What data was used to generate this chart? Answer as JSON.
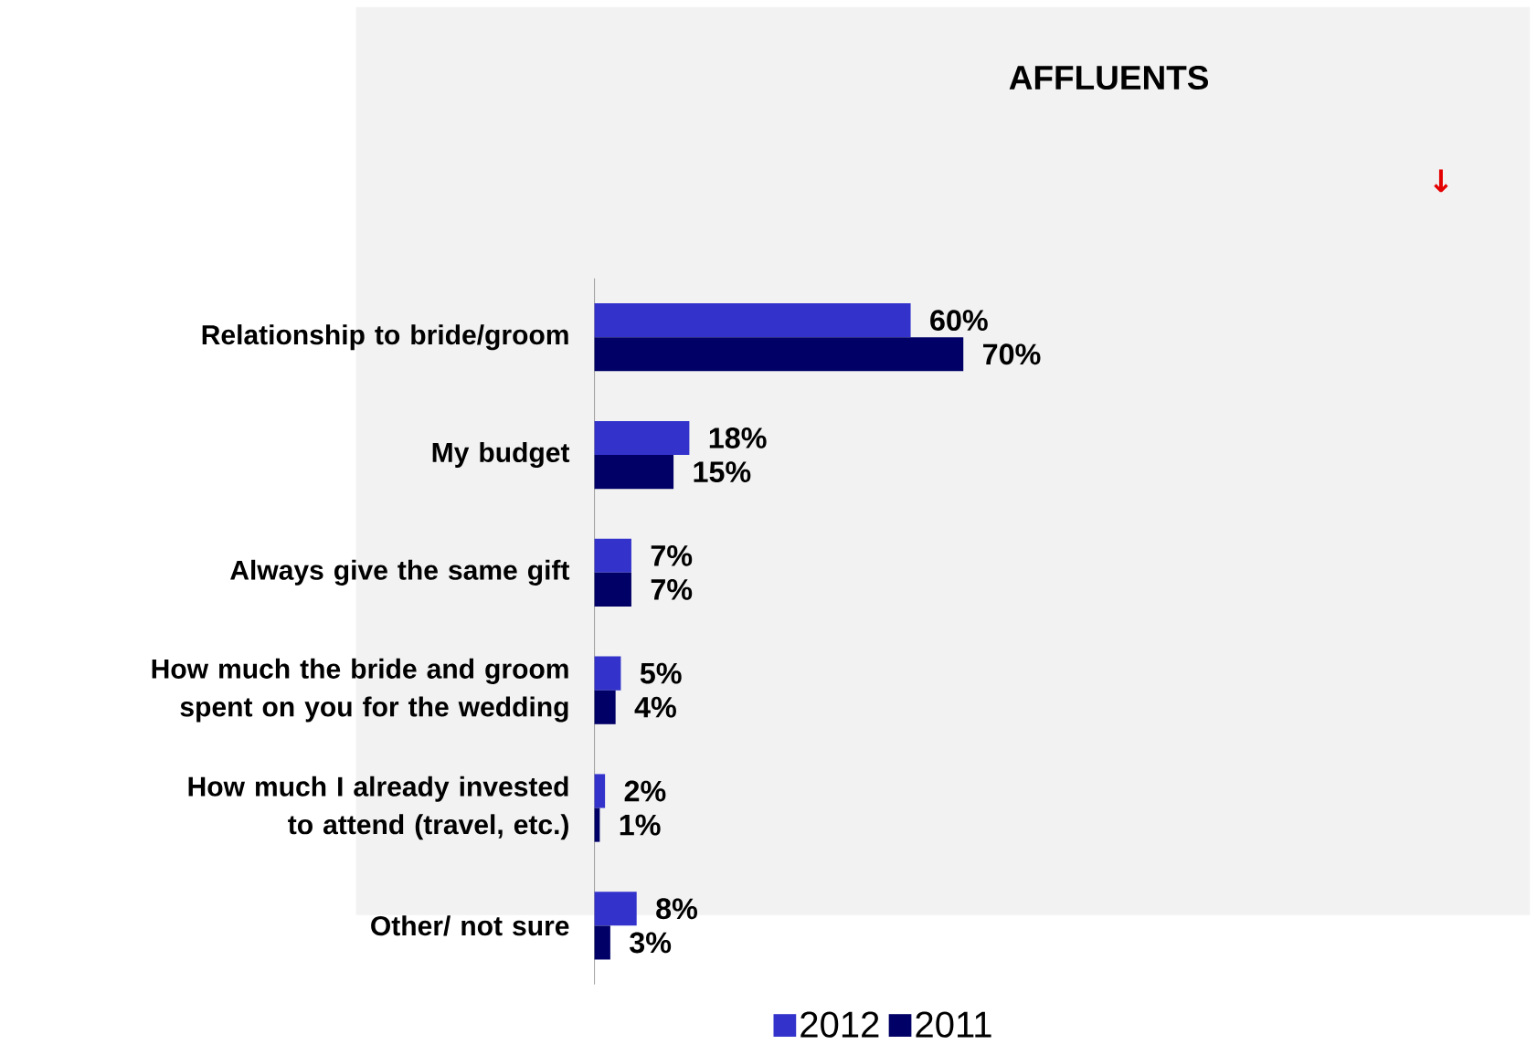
{
  "chart_data": {
    "type": "bar",
    "orientation": "horizontal",
    "title": "AFFLUENTS",
    "categories": [
      "Relationship to bride/groom",
      "My budget",
      "Always give the same gift",
      "How much the bride and groom spent on you for the wedding",
      "How much I already invested to attend (travel, etc.)",
      "Other/ not sure"
    ],
    "tick_labels": "y",
    "legend": "bottom right",
    "series": [
      {
        "name": "2012",
        "color": "#3333cc",
        "values": [
          60,
          18,
          7,
          5,
          2,
          8
        ],
        "value_labels": [
          "60%",
          "18%",
          "7%",
          "5%",
          "2%",
          "8%"
        ]
      },
      {
        "name": "2011",
        "color": "#000066",
        "values": [
          70,
          15,
          7,
          4,
          1,
          3
        ],
        "value_labels": [
          "70%",
          "15%",
          "7%",
          "4%",
          "1%",
          "3%"
        ]
      }
    ],
    "annotations": [
      "↓"
    ]
  }
}
